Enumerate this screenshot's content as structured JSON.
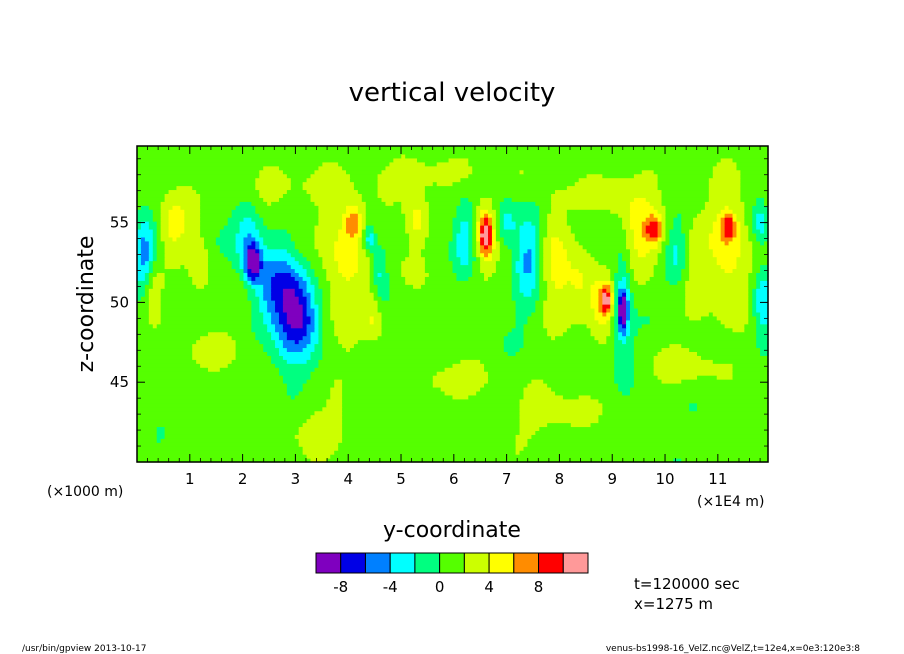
{
  "chart_data": {
    "type": "heatmap",
    "title": "vertical velocity",
    "xlabel": "y-coordinate",
    "ylabel": "z-coordinate",
    "x_unit_left": "(×1000 m)",
    "x_unit_right": "(×1E4 m)",
    "x_ticks": [
      "1",
      "2",
      "3",
      "4",
      "5",
      "6",
      "7",
      "8",
      "9",
      "10",
      "11"
    ],
    "x_tick_values": [
      1,
      2,
      3,
      4,
      5,
      6,
      7,
      8,
      9,
      10,
      11
    ],
    "xlim": [
      0,
      11.95
    ],
    "y_ticks": [
      "45",
      "50",
      "55"
    ],
    "y_tick_values": [
      45,
      50,
      55
    ],
    "ylim": [
      40,
      59.8
    ],
    "colorbar": {
      "colors": [
        "#7f00bf",
        "#0000e6",
        "#0080ff",
        "#00ffff",
        "#00ff80",
        "#55ff00",
        "#ccff00",
        "#ffff00",
        "#ff8c00",
        "#ff0000",
        "#ff9999"
      ],
      "tick_labels": [
        "-8",
        "-4",
        "0",
        "4",
        "8"
      ],
      "tick_values": [
        -8,
        -4,
        0,
        4,
        8
      ]
    },
    "features": [
      {
        "x": 0.15,
        "z": 53,
        "sx": 0.15,
        "sz": 1.5,
        "v": -6
      },
      {
        "x": 0.3,
        "z": 51,
        "sx": 0.12,
        "sz": 1.2,
        "v": 3
      },
      {
        "x": 0.7,
        "z": 55,
        "sx": 0.2,
        "sz": 1.2,
        "v": 4
      },
      {
        "x": 1.2,
        "z": 52.5,
        "sx": 0.15,
        "sz": 1.5,
        "v": 3
      },
      {
        "x": 2.1,
        "z": 54,
        "sx": 0.2,
        "sz": 1.8,
        "v": -5
      },
      {
        "x": 2.2,
        "z": 52.5,
        "sx": 0.1,
        "sz": 0.8,
        "v": -9
      },
      {
        "x": 2.5,
        "z": 51,
        "sx": 0.2,
        "sz": 1.5,
        "v": -4
      },
      {
        "x": 2.9,
        "z": 50,
        "sx": 0.25,
        "sz": 2.5,
        "v": -9
      },
      {
        "x": 3.2,
        "z": 49,
        "sx": 0.2,
        "sz": 1.5,
        "v": -4
      },
      {
        "x": 3.0,
        "z": 53,
        "sx": 0.2,
        "sz": 1.2,
        "v": 2
      },
      {
        "x": 3.9,
        "z": 53,
        "sx": 0.3,
        "sz": 3,
        "v": 4
      },
      {
        "x": 4.1,
        "z": 55,
        "sx": 0.12,
        "sz": 0.8,
        "v": 5
      },
      {
        "x": 4.4,
        "z": 54,
        "sx": 0.08,
        "sz": 0.6,
        "v": -5
      },
      {
        "x": 4.6,
        "z": 52,
        "sx": 0.1,
        "sz": 1.2,
        "v": -4
      },
      {
        "x": 4.5,
        "z": 49,
        "sx": 0.1,
        "sz": 1,
        "v": 3
      },
      {
        "x": 5.3,
        "z": 55,
        "sx": 0.15,
        "sz": 1.2,
        "v": 4
      },
      {
        "x": 5.2,
        "z": 52,
        "sx": 0.2,
        "sz": 1,
        "v": 2
      },
      {
        "x": 6.2,
        "z": 54,
        "sx": 0.15,
        "sz": 1.5,
        "v": -4
      },
      {
        "x": 6.6,
        "z": 54.5,
        "sx": 0.15,
        "sz": 1.5,
        "v": 5
      },
      {
        "x": 6.6,
        "z": 54.2,
        "sx": 0.08,
        "sz": 0.8,
        "v": 7
      },
      {
        "x": 7.0,
        "z": 55,
        "sx": 0.15,
        "sz": 1,
        "v": -4
      },
      {
        "x": 7.4,
        "z": 53,
        "sx": 0.18,
        "sz": 2,
        "v": -5
      },
      {
        "x": 7.9,
        "z": 53,
        "sx": 0.2,
        "sz": 2.5,
        "v": 4
      },
      {
        "x": 8.4,
        "z": 51,
        "sx": 0.2,
        "sz": 1.5,
        "v": 3
      },
      {
        "x": 8.8,
        "z": 50,
        "sx": 0.15,
        "sz": 1.2,
        "v": 5
      },
      {
        "x": 8.9,
        "z": 50.2,
        "sx": 0.07,
        "sz": 0.6,
        "v": 7
      },
      {
        "x": 9.2,
        "z": 50,
        "sx": 0.12,
        "sz": 2.5,
        "v": -5
      },
      {
        "x": 9.2,
        "z": 49.5,
        "sx": 0.06,
        "sz": 0.8,
        "v": -8
      },
      {
        "x": 9.6,
        "z": 54,
        "sx": 0.3,
        "sz": 1.8,
        "v": 4
      },
      {
        "x": 9.8,
        "z": 54.6,
        "sx": 0.12,
        "sz": 0.6,
        "v": 6
      },
      {
        "x": 10.2,
        "z": 53,
        "sx": 0.15,
        "sz": 1.5,
        "v": -3
      },
      {
        "x": 10.6,
        "z": 52,
        "sx": 0.15,
        "sz": 2,
        "v": 2
      },
      {
        "x": 11.2,
        "z": 53,
        "sx": 0.3,
        "sz": 3,
        "v": 4
      },
      {
        "x": 11.2,
        "z": 54.8,
        "sx": 0.1,
        "sz": 0.6,
        "v": 6
      },
      {
        "x": 11.85,
        "z": 50,
        "sx": 0.12,
        "sz": 1.5,
        "v": -5
      },
      {
        "x": 11.8,
        "z": 55,
        "sx": 0.1,
        "sz": 1,
        "v": -4
      },
      {
        "x": 1.3,
        "z": 47,
        "sx": 0.4,
        "sz": 0.8,
        "v": 2
      },
      {
        "x": 3.5,
        "z": 42,
        "sx": 0.5,
        "sz": 1,
        "v": 2
      },
      {
        "x": 6.0,
        "z": 45,
        "sx": 0.6,
        "sz": 0.8,
        "v": 2
      },
      {
        "x": 8.0,
        "z": 43,
        "sx": 0.6,
        "sz": 1,
        "v": 2
      },
      {
        "x": 10.5,
        "z": 46,
        "sx": 0.5,
        "sz": 0.8,
        "v": 2
      },
      {
        "x": 2.5,
        "z": 57,
        "sx": 0.6,
        "sz": 1,
        "v": 2
      },
      {
        "x": 5.5,
        "z": 58,
        "sx": 0.8,
        "sz": 0.8,
        "v": 2
      },
      {
        "x": 9.0,
        "z": 57,
        "sx": 0.6,
        "sz": 1,
        "v": 2
      }
    ]
  },
  "time_label": "t=120000 sec",
  "x_label": "x=1275 m",
  "footer_left": "/usr/bin/gpview  2013-10-17",
  "footer_right": "venus-bs1998-16_VelZ.nc@VelZ,t=12e4,x=0e3:120e3:8"
}
